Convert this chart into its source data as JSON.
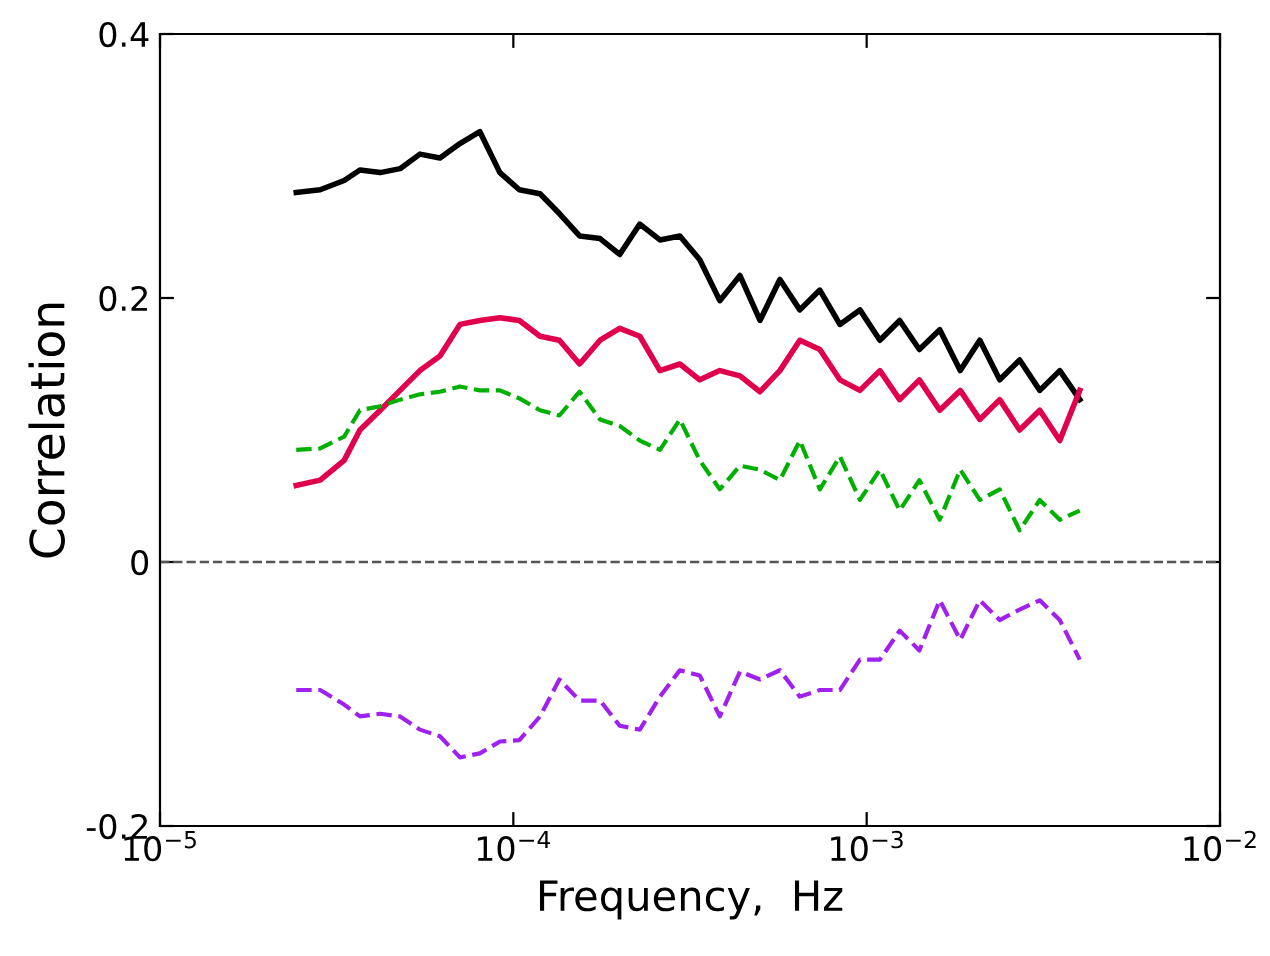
{
  "chart_data": {
    "type": "line",
    "xlabel": "Frequency,  Hz",
    "ylabel": "Correlation",
    "log": "x",
    "xlim": [
      1e-05,
      0.01
    ],
    "xticks": [
      {
        "value": 1e-05,
        "label": "10$^{−5}$"
      },
      {
        "value": 0.0001,
        "label": "10$^{−4}$"
      },
      {
        "value": 0.001,
        "label": "10$^{−3}$"
      },
      {
        "value": 0.01,
        "label": "10$^{−2}$"
      }
    ],
    "ylim": [
      -0.2,
      0.4
    ],
    "yticks": [
      -0.2,
      0,
      0.2,
      0.4
    ],
    "grid": false,
    "legend": false,
    "marker": "none",
    "x": [
      2.43e-05,
      2.84e-05,
      3.32e-05,
      3.68e-05,
      4.2e-05,
      4.78e-05,
      5.44e-05,
      6.2e-05,
      7.06e-05,
      8.04e-05,
      9.16e-05,
      0.000104,
      0.000119,
      0.000135,
      0.000154,
      0.000176,
      0.0002,
      0.000228,
      0.00026,
      0.000296,
      0.000337,
      0.000384,
      0.000438,
      0.000499,
      0.000568,
      0.000647,
      0.000737,
      0.00084,
      0.000957,
      0.00109,
      0.00124,
      0.00141,
      0.00161,
      0.00184,
      0.00209,
      0.00238,
      0.00271,
      0.00309,
      0.00352,
      0.00401
    ],
    "ref_lines": [
      {
        "axis": "y",
        "value": 0,
        "color": "#555555",
        "line_style": "dashed"
      }
    ],
    "series": [
      {
        "color": "#000000",
        "line_style": "solid",
        "values": [
          0.28,
          0.282,
          0.289,
          0.297,
          0.295,
          0.298,
          0.309,
          0.306,
          0.317,
          0.326,
          0.295,
          0.282,
          0.279,
          0.264,
          0.247,
          0.245,
          0.233,
          0.256,
          0.244,
          0.247,
          0.229,
          0.198,
          0.217,
          0.183,
          0.214,
          0.191,
          0.206,
          0.18,
          0.191,
          0.168,
          0.183,
          0.161,
          0.176,
          0.145,
          0.168,
          0.138,
          0.153,
          0.13,
          0.145,
          0.123
        ]
      },
      {
        "color": "#e0004c",
        "line_style": "solid",
        "values": [
          0.058,
          0.062,
          0.077,
          0.1,
          0.115,
          0.13,
          0.145,
          0.156,
          0.18,
          0.183,
          0.185,
          0.183,
          0.171,
          0.168,
          0.15,
          0.168,
          0.177,
          0.171,
          0.145,
          0.15,
          0.138,
          0.145,
          0.141,
          0.129,
          0.145,
          0.168,
          0.161,
          0.138,
          0.13,
          0.145,
          0.123,
          0.138,
          0.115,
          0.13,
          0.108,
          0.123,
          0.1,
          0.115,
          0.092,
          0.13
        ]
      },
      {
        "color": "#00b000",
        "line_style": "dashed",
        "values": [
          0.085,
          0.086,
          0.095,
          0.115,
          0.118,
          0.123,
          0.127,
          0.129,
          0.133,
          0.13,
          0.13,
          0.124,
          0.115,
          0.111,
          0.129,
          0.108,
          0.103,
          0.092,
          0.085,
          0.108,
          0.077,
          0.055,
          0.073,
          0.07,
          0.062,
          0.092,
          0.055,
          0.08,
          0.047,
          0.07,
          0.039,
          0.062,
          0.032,
          0.07,
          0.047,
          0.055,
          0.024,
          0.047,
          0.032,
          0.039
        ]
      },
      {
        "color": "#a020f0",
        "line_style": "dashed",
        "values": [
          -0.097,
          -0.097,
          -0.108,
          -0.117,
          -0.115,
          -0.117,
          -0.127,
          -0.132,
          -0.148,
          -0.145,
          -0.136,
          -0.135,
          -0.117,
          -0.089,
          -0.105,
          -0.105,
          -0.124,
          -0.127,
          -0.102,
          -0.082,
          -0.086,
          -0.117,
          -0.083,
          -0.089,
          -0.082,
          -0.102,
          -0.097,
          -0.097,
          -0.074,
          -0.074,
          -0.052,
          -0.067,
          -0.029,
          -0.059,
          -0.029,
          -0.044,
          -0.036,
          -0.029,
          -0.044,
          -0.074
        ]
      }
    ]
  }
}
